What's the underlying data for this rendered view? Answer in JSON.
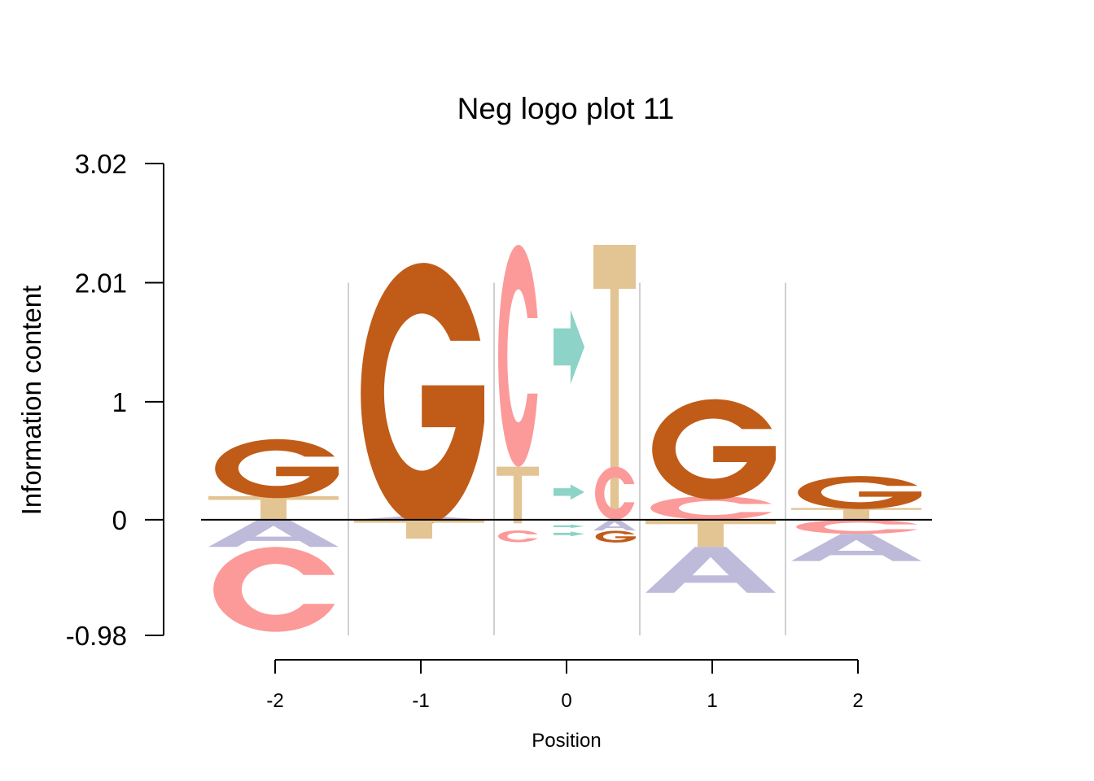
{
  "chart_data": {
    "type": "sequence-logo",
    "title": "Neg logo plot 11",
    "ylabel": "Information content",
    "xlabel": "Position",
    "yticks": [
      "3.02",
      "2.01",
      "1",
      "0",
      "-0.98"
    ],
    "ylim": [
      -0.98,
      3.02
    ],
    "positions": [
      {
        "label": "-2",
        "letters": [
          {
            "char": "T",
            "bottom": 0.0,
            "top": 0.2
          },
          {
            "char": "G",
            "bottom": 0.2,
            "top": 0.7
          },
          {
            "char": "A",
            "bottom": -0.23,
            "top": 0.0
          },
          {
            "char": "C",
            "bottom": -0.95,
            "top": -0.23
          }
        ]
      },
      {
        "label": "-1",
        "letters": [
          {
            "char": "A",
            "bottom": 0.0,
            "top": 0.03
          },
          {
            "char": "G",
            "bottom": 0.03,
            "top": 2.25
          },
          {
            "char": "T",
            "bottom": -0.16,
            "top": 0.0
          }
        ]
      },
      {
        "label": "0",
        "letters": [
          {
            "char": "T",
            "bottom": -0.03,
            "top": 0.45
          },
          {
            "char": "C",
            "bottom": 0.45,
            "top": 2.33
          },
          {
            "char": "C",
            "bottom": -0.19,
            "top": -0.09
          },
          {
            "char": "T",
            "bottom": 0.0,
            "top": 2.33
          },
          {
            "char": "C",
            "bottom": 0.0,
            "top": 0.45
          },
          {
            "char": "A",
            "bottom": -0.09,
            "top": 0.0
          },
          {
            "char": "G",
            "bottom": -0.19,
            "top": -0.09
          }
        ],
        "arrows": [
          {
            "bottom": 1.15,
            "top": 1.78
          },
          {
            "bottom": 0.17,
            "top": 0.3
          },
          {
            "bottom": -0.14,
            "top": -0.1
          },
          {
            "bottom": -0.07,
            "top": -0.04
          }
        ]
      },
      {
        "label": "1",
        "letters": [
          {
            "char": "C",
            "bottom": 0.0,
            "top": 0.2
          },
          {
            "char": "G",
            "bottom": 0.2,
            "top": 1.05
          },
          {
            "char": "T",
            "bottom": -0.23,
            "top": 0.0
          },
          {
            "char": "A",
            "bottom": -0.62,
            "top": -0.23
          }
        ]
      },
      {
        "label": "2",
        "letters": [
          {
            "char": "T",
            "bottom": 0.0,
            "top": 0.1
          },
          {
            "char": "G",
            "bottom": 0.1,
            "top": 0.38
          },
          {
            "char": "C",
            "bottom": -0.12,
            "top": 0.0
          },
          {
            "char": "A",
            "bottom": -0.35,
            "top": -0.12
          }
        ]
      }
    ],
    "colors": {
      "A": "#bebada",
      "C": "#fb9a99",
      "G": "#c05c18",
      "T": "#e3c493",
      "arrow": "#8dd3c7"
    }
  }
}
